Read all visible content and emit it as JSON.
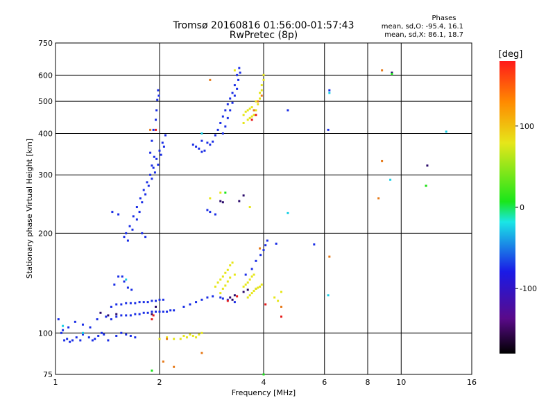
{
  "chart_data": {
    "type": "scatter",
    "title": "Tromsø 20160816 01:56:00-01:57:43",
    "subtitle": "RwPretec (8p)",
    "xlabel": "Frequency [MHz]",
    "ylabel": "Stationary phase Virtual Height [km]",
    "x_scale": "log",
    "y_scale": "log",
    "xlim": [
      1,
      16
    ],
    "ylim": [
      75,
      750
    ],
    "x_ticks": [
      1,
      2,
      4,
      6,
      8,
      10,
      16
    ],
    "y_ticks": [
      75,
      100,
      200,
      300,
      400,
      500,
      600,
      750
    ],
    "grid": true,
    "legend_text": {
      "header": "Phases",
      "line1": "mean, sd,O: -95.4, 16.1",
      "line2": "mean, sd,X:  86.1, 18.7"
    },
    "colorbar": {
      "label": "[deg]",
      "min": -180,
      "max": 180,
      "ticks": [
        100,
        0,
        -100
      ]
    },
    "series": [
      {
        "color": "#1a2ee6",
        "points": [
          [
            1.02,
            110
          ],
          [
            1.04,
            100
          ],
          [
            1.06,
            95
          ],
          [
            1.08,
            96
          ],
          [
            1.1,
            94
          ],
          [
            1.12,
            95
          ],
          [
            1.15,
            97
          ],
          [
            1.18,
            95
          ],
          [
            1.2,
            99
          ],
          [
            1.25,
            97
          ],
          [
            1.28,
            95
          ],
          [
            1.3,
            96
          ],
          [
            1.33,
            98
          ],
          [
            1.36,
            100
          ],
          [
            1.05,
            102
          ],
          [
            1.09,
            104
          ],
          [
            1.14,
            108
          ],
          [
            1.2,
            106
          ],
          [
            1.26,
            104
          ],
          [
            1.32,
            110
          ],
          [
            1.4,
            112
          ],
          [
            1.45,
            110
          ],
          [
            1.5,
            112
          ],
          [
            1.55,
            113
          ],
          [
            1.6,
            113
          ],
          [
            1.65,
            113
          ],
          [
            1.7,
            114
          ],
          [
            1.75,
            114
          ],
          [
            1.8,
            115
          ],
          [
            1.85,
            115
          ],
          [
            1.9,
            116
          ],
          [
            1.95,
            116
          ],
          [
            2.0,
            116
          ],
          [
            2.05,
            116
          ],
          [
            2.1,
            116
          ],
          [
            2.15,
            117
          ],
          [
            2.2,
            117
          ],
          [
            1.45,
            120
          ],
          [
            1.5,
            122
          ],
          [
            1.55,
            122
          ],
          [
            1.6,
            123
          ],
          [
            1.65,
            123
          ],
          [
            1.7,
            123
          ],
          [
            1.75,
            124
          ],
          [
            1.8,
            124
          ],
          [
            1.85,
            124
          ],
          [
            1.9,
            125
          ],
          [
            1.95,
            125
          ],
          [
            2.0,
            126
          ],
          [
            2.05,
            126
          ],
          [
            1.48,
            140
          ],
          [
            1.52,
            148
          ],
          [
            1.56,
            148
          ],
          [
            1.58,
            143
          ],
          [
            1.62,
            137
          ],
          [
            1.66,
            135
          ],
          [
            1.5,
            98
          ],
          [
            1.55,
            100
          ],
          [
            1.6,
            99
          ],
          [
            1.65,
            98
          ],
          [
            1.7,
            97
          ],
          [
            1.42,
            95
          ],
          [
            1.38,
            99
          ],
          [
            1.58,
            195
          ],
          [
            1.6,
            200
          ],
          [
            1.64,
            210
          ],
          [
            1.68,
            225
          ],
          [
            1.72,
            240
          ],
          [
            1.76,
            255
          ],
          [
            1.8,
            270
          ],
          [
            1.84,
            285
          ],
          [
            1.88,
            300
          ],
          [
            1.92,
            315
          ],
          [
            1.96,
            335
          ],
          [
            2.0,
            355
          ],
          [
            2.04,
            375
          ],
          [
            2.08,
            395
          ],
          [
            1.62,
            190
          ],
          [
            1.67,
            205
          ],
          [
            1.72,
            220
          ],
          [
            1.75,
            232
          ],
          [
            1.78,
            248
          ],
          [
            1.82,
            262
          ],
          [
            1.86,
            278
          ],
          [
            1.9,
            292
          ],
          [
            1.94,
            305
          ],
          [
            1.98,
            322
          ],
          [
            2.02,
            345
          ],
          [
            2.06,
            365
          ],
          [
            1.88,
            350
          ],
          [
            1.9,
            380
          ],
          [
            1.92,
            410
          ],
          [
            1.95,
            440
          ],
          [
            1.96,
            470
          ],
          [
            1.97,
            505
          ],
          [
            1.98,
            540
          ],
          [
            1.99,
            520
          ],
          [
            1.9,
            320
          ],
          [
            1.93,
            340
          ],
          [
            1.46,
            232
          ],
          [
            1.52,
            228
          ],
          [
            1.78,
            200
          ],
          [
            1.82,
            195
          ],
          [
            2.5,
            370
          ],
          [
            2.55,
            365
          ],
          [
            2.6,
            360
          ],
          [
            2.65,
            352
          ],
          [
            2.7,
            355
          ],
          [
            2.75,
            375
          ],
          [
            2.8,
            370
          ],
          [
            2.85,
            378
          ],
          [
            2.9,
            395
          ],
          [
            2.95,
            410
          ],
          [
            3.0,
            430
          ],
          [
            3.05,
            450
          ],
          [
            3.1,
            470
          ],
          [
            3.15,
            490
          ],
          [
            3.2,
            510
          ],
          [
            3.25,
            530
          ],
          [
            3.3,
            560
          ],
          [
            3.35,
            600
          ],
          [
            3.4,
            630
          ],
          [
            3.05,
            400
          ],
          [
            3.1,
            420
          ],
          [
            3.15,
            445
          ],
          [
            3.2,
            470
          ],
          [
            3.25,
            495
          ],
          [
            3.3,
            520
          ],
          [
            3.35,
            545
          ],
          [
            3.38,
            580
          ],
          [
            3.42,
            610
          ],
          [
            2.65,
            380
          ],
          [
            2.75,
            235
          ],
          [
            2.8,
            232
          ],
          [
            2.9,
            228
          ],
          [
            2.35,
            120
          ],
          [
            2.45,
            122
          ],
          [
            2.55,
            124
          ],
          [
            2.65,
            126
          ],
          [
            2.75,
            128
          ],
          [
            2.85,
            129
          ],
          [
            3.0,
            128
          ],
          [
            3.05,
            127
          ],
          [
            3.15,
            126
          ],
          [
            3.3,
            124
          ],
          [
            3.55,
            150
          ],
          [
            3.7,
            156
          ],
          [
            3.8,
            165
          ],
          [
            3.92,
            172
          ],
          [
            4.0,
            178
          ],
          [
            4.05,
            184
          ],
          [
            4.1,
            190
          ],
          [
            4.35,
            186
          ],
          [
            5.6,
            185
          ],
          [
            4.7,
            470
          ],
          [
            6.15,
            410
          ],
          [
            6.2,
            540
          ]
        ]
      },
      {
        "color": "#2a0a6a",
        "points": [
          [
            1.35,
            115
          ],
          [
            1.42,
            113
          ],
          [
            1.5,
            114
          ],
          [
            1.9,
            114
          ],
          [
            1.95,
            120
          ],
          [
            3.2,
            128
          ],
          [
            3.3,
            130
          ],
          [
            3.5,
            133
          ],
          [
            3.6,
            135
          ],
          [
            3.8,
            136
          ],
          [
            3.0,
            250
          ],
          [
            3.05,
            248
          ],
          [
            3.5,
            260
          ],
          [
            3.4,
            250
          ],
          [
            9.4,
            610
          ],
          [
            11.9,
            320
          ],
          [
            3.25,
            126
          ]
        ]
      },
      {
        "color": "#e6e61a",
        "points": [
          [
            2.0,
            96
          ],
          [
            2.1,
            97
          ],
          [
            2.2,
            96
          ],
          [
            2.3,
            96
          ],
          [
            2.35,
            98
          ],
          [
            2.4,
            97
          ],
          [
            2.45,
            99
          ],
          [
            2.5,
            98
          ],
          [
            2.55,
            97
          ],
          [
            2.6,
            99
          ],
          [
            2.65,
            100
          ],
          [
            2.9,
            138
          ],
          [
            2.95,
            142
          ],
          [
            3.0,
            145
          ],
          [
            3.05,
            148
          ],
          [
            3.1,
            152
          ],
          [
            3.15,
            155
          ],
          [
            3.2,
            160
          ],
          [
            3.25,
            163
          ],
          [
            3.0,
            132
          ],
          [
            3.05,
            136
          ],
          [
            3.1,
            139
          ],
          [
            3.15,
            143
          ],
          [
            3.2,
            147
          ],
          [
            3.3,
            150
          ],
          [
            3.5,
            138
          ],
          [
            3.55,
            140
          ],
          [
            3.6,
            142
          ],
          [
            3.65,
            145
          ],
          [
            3.7,
            148
          ],
          [
            3.75,
            150
          ],
          [
            3.6,
            128
          ],
          [
            3.65,
            130
          ],
          [
            3.7,
            132
          ],
          [
            3.75,
            134
          ],
          [
            3.8,
            136
          ],
          [
            3.85,
            137
          ],
          [
            3.9,
            138
          ],
          [
            3.95,
            140
          ],
          [
            3.5,
            430
          ],
          [
            3.6,
            440
          ],
          [
            3.65,
            445
          ],
          [
            3.7,
            450
          ],
          [
            3.75,
            455
          ],
          [
            3.8,
            470
          ],
          [
            3.85,
            490
          ],
          [
            3.9,
            510
          ],
          [
            3.95,
            540
          ],
          [
            4.0,
            580
          ],
          [
            3.5,
            455
          ],
          [
            3.55,
            465
          ],
          [
            3.6,
            470
          ],
          [
            3.65,
            475
          ],
          [
            3.7,
            480
          ],
          [
            3.8,
            500
          ],
          [
            3.9,
            530
          ],
          [
            3.95,
            560
          ],
          [
            4.0,
            600
          ],
          [
            4.3,
            128
          ],
          [
            4.5,
            133
          ],
          [
            4.4,
            125
          ],
          [
            3.0,
            265
          ],
          [
            2.8,
            255
          ],
          [
            3.3,
            620
          ],
          [
            3.65,
            240
          ]
        ]
      },
      {
        "color": "#e67a1a",
        "points": [
          [
            2.05,
            82
          ],
          [
            2.2,
            79
          ],
          [
            2.65,
            87
          ],
          [
            2.8,
            580
          ],
          [
            1.88,
            410
          ],
          [
            3.9,
            180
          ],
          [
            6.2,
            170
          ],
          [
            8.6,
            255
          ],
          [
            8.8,
            330
          ],
          [
            8.8,
            620
          ],
          [
            11.8,
            278
          ],
          [
            3.75,
            470
          ],
          [
            3.85,
            500
          ],
          [
            3.95,
            520
          ],
          [
            4.5,
            120
          ],
          [
            2.1,
            96
          ]
        ]
      },
      {
        "color": "#1ad0e6",
        "points": [
          [
            1.2,
            100
          ],
          [
            1.6,
            145
          ],
          [
            6.2,
            530
          ],
          [
            6.15,
            130
          ],
          [
            9.3,
            290
          ],
          [
            13.5,
            405
          ],
          [
            4.7,
            230
          ],
          [
            2.65,
            400
          ],
          [
            1.05,
            105
          ]
        ]
      },
      {
        "color": "#e61a1a",
        "points": [
          [
            1.9,
            110
          ],
          [
            1.92,
            113
          ],
          [
            3.15,
            125
          ],
          [
            3.35,
            129
          ],
          [
            4.05,
            122
          ],
          [
            4.5,
            112
          ],
          [
            1.95,
            410
          ],
          [
            3.7,
            440
          ],
          [
            3.8,
            455
          ]
        ]
      },
      {
        "color": "#1ae61a",
        "points": [
          [
            1.9,
            77
          ],
          [
            3.1,
            265
          ],
          [
            4.0,
            75
          ],
          [
            9.4,
            605
          ],
          [
            11.8,
            278
          ]
        ]
      }
    ]
  }
}
